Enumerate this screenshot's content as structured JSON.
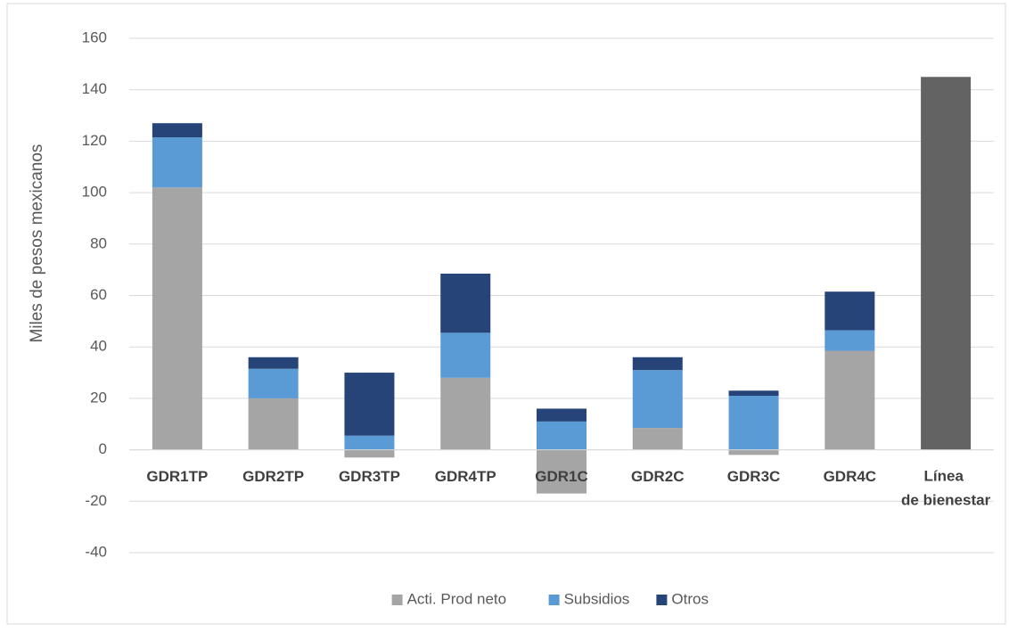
{
  "chart_data": {
    "type": "stacked_bar",
    "y_axis_label": "Miles de pesos mexicanos",
    "categories": [
      "GDR1TP",
      "GDR2TP",
      "GDR3TP",
      "GDR4TP",
      "GDR1C",
      "GDR2C",
      "GDR3C",
      "GDR4C",
      "Línea de bienestar"
    ],
    "series": [
      {
        "name": "Acti. Prod neto",
        "color": "#a5a5a5",
        "values": [
          102,
          20,
          -3,
          28,
          -17,
          8.5,
          -2,
          38.5,
          null
        ]
      },
      {
        "name": "Subsidios",
        "color": "#5b9bd5",
        "values": [
          19.5,
          11.5,
          5.5,
          17.5,
          11,
          22.5,
          21,
          8,
          null
        ]
      },
      {
        "name": "Otros",
        "color": "#264478",
        "values": [
          5.5,
          4.5,
          24.5,
          23,
          5,
          5,
          2,
          15,
          null
        ]
      },
      {
        "color": "#636363",
        "values": [
          null,
          null,
          null,
          null,
          null,
          null,
          null,
          null,
          145
        ]
      }
    ],
    "ylim": [
      -40,
      160
    ],
    "yticks": [
      -40,
      -20,
      0,
      20,
      40,
      60,
      80,
      100,
      120,
      140,
      160
    ],
    "grid": true,
    "legend": "bottom"
  }
}
